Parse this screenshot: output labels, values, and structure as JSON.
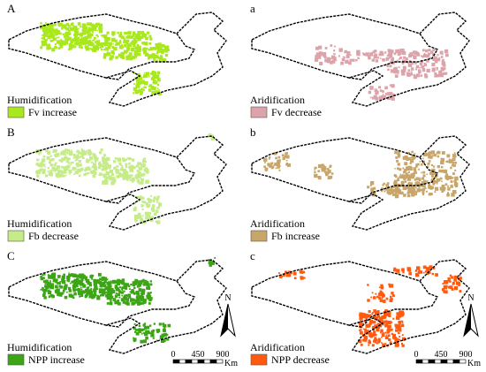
{
  "panels": [
    {
      "letter": "A",
      "title": "Humidification",
      "legend": "Fv increase",
      "color": "#a8e81c"
    },
    {
      "letter": "a",
      "title": "Aridification",
      "legend": "Fv decrease",
      "color": "#dca3aa"
    },
    {
      "letter": "B",
      "title": "Humidification",
      "legend": "Fb decrease",
      "color": "#c5ec88"
    },
    {
      "letter": "b",
      "title": "Aridification",
      "legend": "Fb increase",
      "color": "#c8a66a"
    },
    {
      "letter": "C",
      "title": "Humidification",
      "legend": "NPP increase",
      "color": "#3ca516"
    },
    {
      "letter": "c",
      "title": "Aridification",
      "legend": "NPP decrease",
      "color": "#ff5a10"
    }
  ],
  "scale_bar": {
    "ticks": [
      "0",
      "450",
      "900"
    ],
    "unit": "Km"
  },
  "north": "N"
}
